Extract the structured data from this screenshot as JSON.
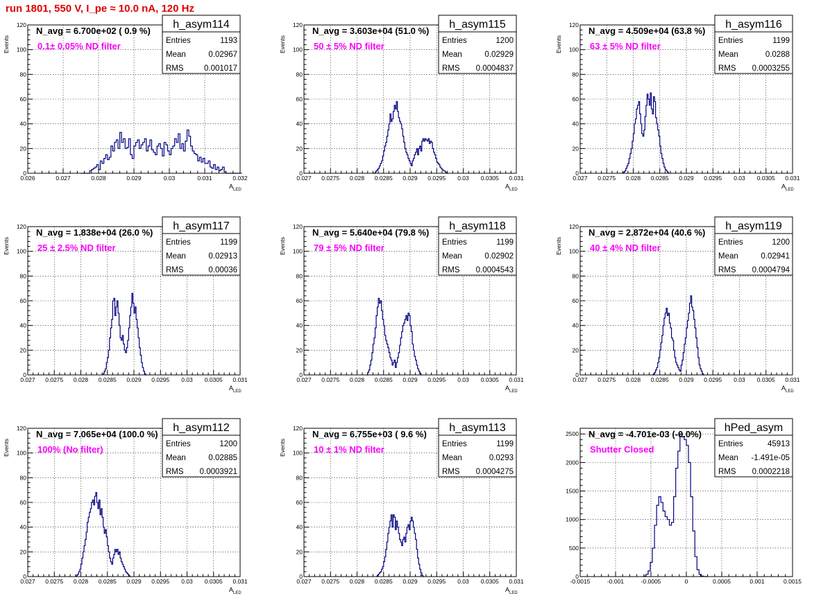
{
  "header": {
    "title": "run 1801,   550 V, I_pe ≈ 10.0 nA, 120 Hz"
  },
  "colors": {
    "title": "#e00000",
    "histogram": "#000080",
    "annotation": "#ff00ff"
  },
  "chart_data": [
    {
      "type": "bar",
      "name": "h_asym114",
      "n_avg": "N_avg = 6.700e+02 ( 0.9 %)",
      "filter": "0.1± 0.05% ND filter",
      "stats": {
        "entries": "1193",
        "mean": "0.02967",
        "rms": "0.001017"
      },
      "xlabel": "A",
      "xlabel_sub": "LED",
      "ylabel": "Events",
      "xlim": [
        0.026,
        0.032
      ],
      "ylim": [
        0,
        120
      ],
      "xticks": [
        0.026,
        0.027,
        0.028,
        0.029,
        0.03,
        0.031,
        0.032
      ],
      "xtick_labels": [
        "0.026",
        "0.027",
        "0.028",
        "0.029",
        "0.03",
        "0.031",
        "0.032"
      ],
      "yticks": [
        0,
        20,
        40,
        60,
        80,
        100,
        120
      ],
      "bin_start": 0.0275,
      "bin_width": 5e-05,
      "counts": [
        0,
        0,
        0,
        0,
        0,
        2,
        3,
        4,
        5,
        7,
        3,
        10,
        8,
        12,
        15,
        11,
        13,
        22,
        18,
        25,
        27,
        20,
        33,
        25,
        28,
        20,
        21,
        28,
        15,
        12,
        22,
        25,
        27,
        20,
        23,
        25,
        28,
        18,
        22,
        27,
        19,
        17,
        15,
        22,
        24,
        20,
        14,
        25,
        23,
        18,
        15,
        20,
        22,
        28,
        25,
        32,
        20,
        24,
        18,
        26,
        35,
        30,
        22,
        18,
        16,
        15,
        10,
        13,
        9,
        12,
        8,
        8,
        10,
        5,
        4,
        7,
        3,
        5,
        2,
        3,
        5,
        1,
        0,
        0,
        0,
        0,
        0,
        0,
        0,
        0,
        0
      ]
    },
    {
      "type": "bar",
      "name": "h_asym115",
      "n_avg": "N_avg = 3.603e+04 (51.0 %)",
      "filter": "50 ± 5% ND filter",
      "stats": {
        "entries": "1200",
        "mean": "0.02929",
        "rms": "0.0004837"
      },
      "xlabel": "A",
      "xlabel_sub": "LED",
      "ylabel": "Events",
      "xlim": [
        0.027,
        0.031
      ],
      "ylim": [
        0,
        120
      ],
      "xticks": [
        0.027,
        0.0275,
        0.028,
        0.0285,
        0.029,
        0.0295,
        0.03,
        0.0305,
        0.031
      ],
      "xtick_labels": [
        "0.027",
        "0.0275",
        "0.028",
        "0.0285",
        "0.029",
        "0.0295",
        "0.03",
        "0.0305",
        "0.031"
      ],
      "yticks": [
        0,
        20,
        40,
        60,
        80,
        100,
        120
      ],
      "bin_start": 0.0283,
      "bin_width": 2e-05,
      "counts": [
        0,
        0,
        1,
        2,
        3,
        4,
        6,
        8,
        10,
        14,
        18,
        22,
        25,
        30,
        35,
        40,
        48,
        42,
        44,
        50,
        55,
        52,
        58,
        50,
        45,
        42,
        40,
        36,
        30,
        25,
        20,
        17,
        15,
        12,
        10,
        8,
        6,
        10,
        12,
        15,
        17,
        20,
        15,
        20,
        22,
        18,
        26,
        28,
        26,
        28,
        27,
        26,
        28,
        24,
        26,
        25,
        20,
        17,
        15,
        12,
        9,
        8,
        7,
        5,
        4,
        3,
        2,
        2,
        1,
        0,
        0
      ]
    },
    {
      "type": "bar",
      "name": "h_asym116",
      "n_avg": "N_avg = 4.509e+04 (63.8 %)",
      "filter": "63 ± 5% ND filter",
      "stats": {
        "entries": "1199",
        "mean": "0.0288",
        "rms": "0.0003255"
      },
      "xlabel": "A",
      "xlabel_sub": "LED",
      "ylabel": "Events",
      "xlim": [
        0.027,
        0.031
      ],
      "ylim": [
        0,
        120
      ],
      "xticks": [
        0.027,
        0.0275,
        0.028,
        0.0285,
        0.029,
        0.0295,
        0.03,
        0.0305,
        0.031
      ],
      "xtick_labels": [
        "0.027",
        "0.0275",
        "0.028",
        "0.0285",
        "0.029",
        "0.0295",
        "0.03",
        "0.0305",
        "0.031"
      ],
      "yticks": [
        0,
        20,
        40,
        60,
        80,
        100,
        120
      ],
      "bin_start": 0.0278,
      "bin_width": 2e-05,
      "counts": [
        0,
        1,
        2,
        4,
        6,
        8,
        12,
        16,
        20,
        26,
        32,
        40,
        44,
        52,
        55,
        58,
        48,
        40,
        32,
        30,
        35,
        46,
        55,
        64,
        60,
        55,
        65,
        52,
        48,
        62,
        58,
        45,
        40,
        35,
        30,
        22,
        16,
        12,
        8,
        5,
        3,
        2,
        1,
        0
      ]
    },
    {
      "type": "bar",
      "name": "h_asym117",
      "n_avg": "N_avg = 1.838e+04 (26.0 %)",
      "filter": "25 ± 2.5% ND filter",
      "stats": {
        "entries": "1199",
        "mean": "0.02913",
        "rms": "0.00036"
      },
      "xlabel": "A",
      "xlabel_sub": "LED",
      "ylabel": "Events",
      "xlim": [
        0.027,
        0.031
      ],
      "ylim": [
        0,
        120
      ],
      "xticks": [
        0.027,
        0.0275,
        0.028,
        0.0285,
        0.029,
        0.0295,
        0.03,
        0.0305,
        0.031
      ],
      "xtick_labels": [
        "0.027",
        "0.0275",
        "0.028",
        "0.0285",
        "0.029",
        "0.0295",
        "0.03",
        "0.0305",
        "0.031"
      ],
      "yticks": [
        0,
        20,
        40,
        60,
        80,
        100,
        120
      ],
      "bin_start": 0.02842,
      "bin_width": 2e-05,
      "counts": [
        1,
        3,
        5,
        10,
        14,
        20,
        30,
        38,
        45,
        60,
        62,
        48,
        55,
        60,
        50,
        40,
        30,
        28,
        32,
        25,
        20,
        18,
        22,
        28,
        38,
        48,
        55,
        66,
        58,
        50,
        55,
        45,
        38,
        30,
        22,
        16,
        10,
        6,
        3,
        1,
        0
      ]
    },
    {
      "type": "bar",
      "name": "h_asym118",
      "n_avg": "N_avg = 5.640e+04 (79.8 %)",
      "filter": "79 ± 5% ND filter",
      "stats": {
        "entries": "1199",
        "mean": "0.02902",
        "rms": "0.0004543"
      },
      "xlabel": "A",
      "xlabel_sub": "LED",
      "ylabel": "Events",
      "xlim": [
        0.027,
        0.031
      ],
      "ylim": [
        0,
        120
      ],
      "xticks": [
        0.027,
        0.0275,
        0.028,
        0.0285,
        0.029,
        0.0295,
        0.03,
        0.0305,
        0.031
      ],
      "xtick_labels": [
        "0.027",
        "0.0275",
        "0.028",
        "0.0285",
        "0.029",
        "0.0295",
        "0.03",
        "0.0305",
        "0.031"
      ],
      "yticks": [
        0,
        20,
        40,
        60,
        80,
        100,
        120
      ],
      "bin_start": 0.02818,
      "bin_width": 2e-05,
      "counts": [
        0,
        2,
        4,
        8,
        12,
        18,
        25,
        30,
        38,
        48,
        55,
        62,
        58,
        60,
        52,
        45,
        40,
        32,
        28,
        25,
        22,
        18,
        14,
        12,
        8,
        10,
        12,
        6,
        10,
        14,
        18,
        24,
        30,
        35,
        40,
        42,
        45,
        48,
        44,
        50,
        48,
        40,
        35,
        25,
        20,
        15,
        12,
        8,
        5,
        3,
        1,
        0
      ]
    },
    {
      "type": "bar",
      "name": "h_asym119",
      "n_avg": "N_avg = 2.872e+04 (40.6 %)",
      "filter": "40 ± 4% ND filter",
      "stats": {
        "entries": "1200",
        "mean": "0.02941",
        "rms": "0.0004794"
      },
      "xlabel": "A",
      "xlabel_sub": "LED",
      "ylabel": "Events",
      "xlim": [
        0.027,
        0.031
      ],
      "ylim": [
        0,
        120
      ],
      "xticks": [
        0.027,
        0.0275,
        0.028,
        0.0285,
        0.029,
        0.0295,
        0.03,
        0.0305,
        0.031
      ],
      "xtick_labels": [
        "0.027",
        "0.0275",
        "0.028",
        "0.0285",
        "0.029",
        "0.0295",
        "0.03",
        "0.0305",
        "0.031"
      ],
      "yticks": [
        0,
        20,
        40,
        60,
        80,
        100,
        120
      ],
      "bin_start": 0.02836,
      "bin_width": 2e-05,
      "counts": [
        0,
        1,
        2,
        4,
        6,
        10,
        14,
        20,
        26,
        32,
        40,
        46,
        50,
        54,
        48,
        50,
        42,
        38,
        30,
        28,
        20,
        14,
        10,
        8,
        6,
        4,
        3,
        8,
        12,
        18,
        25,
        30,
        38,
        44,
        50,
        58,
        64,
        55,
        52,
        45,
        38,
        30,
        22,
        14,
        8,
        5,
        3,
        1,
        0
      ]
    },
    {
      "type": "bar",
      "name": "h_asym112",
      "n_avg": "N_avg = 7.065e+04 (100.0 %)",
      "filter": "100% (No filter)",
      "stats": {
        "entries": "1200",
        "mean": "0.02885",
        "rms": "0.0003921"
      },
      "xlabel": "A",
      "xlabel_sub": "LED",
      "ylabel": "Events",
      "xlim": [
        0.027,
        0.031
      ],
      "ylim": [
        0,
        120
      ],
      "xticks": [
        0.027,
        0.0275,
        0.028,
        0.0285,
        0.029,
        0.0295,
        0.03,
        0.0305,
        0.031
      ],
      "xtick_labels": [
        "0.027",
        "0.0275",
        "0.028",
        "0.0285",
        "0.029",
        "0.0295",
        "0.03",
        "0.0305",
        "0.031"
      ],
      "yticks": [
        0,
        20,
        40,
        60,
        80,
        100,
        120
      ],
      "bin_start": 0.0279,
      "bin_width": 2e-05,
      "counts": [
        0,
        1,
        2,
        4,
        6,
        10,
        15,
        20,
        25,
        30,
        36,
        44,
        48,
        52,
        55,
        60,
        62,
        58,
        65,
        68,
        60,
        55,
        62,
        50,
        55,
        48,
        40,
        35,
        38,
        32,
        25,
        20,
        15,
        12,
        10,
        15,
        18,
        22,
        20,
        22,
        18,
        20,
        15,
        12,
        10,
        8,
        6,
        4,
        3,
        2,
        1,
        0
      ]
    },
    {
      "type": "bar",
      "name": "h_asym113",
      "n_avg": "N_avg = 6.755e+03 ( 9.6 %)",
      "filter": "10 ± 1% ND filter",
      "stats": {
        "entries": "1199",
        "mean": "0.0293",
        "rms": "0.0004275"
      },
      "xlabel": "A",
      "xlabel_sub": "LED",
      "ylabel": "Events",
      "xlim": [
        0.027,
        0.031
      ],
      "ylim": [
        0,
        120
      ],
      "xticks": [
        0.027,
        0.0275,
        0.028,
        0.0285,
        0.029,
        0.0295,
        0.03,
        0.0305,
        0.031
      ],
      "xtick_labels": [
        "0.027",
        "0.0275",
        "0.028",
        "0.0285",
        "0.029",
        "0.0295",
        "0.03",
        "0.0305",
        "0.031"
      ],
      "yticks": [
        0,
        20,
        40,
        60,
        80,
        100,
        120
      ],
      "bin_start": 0.02836,
      "bin_width": 2e-05,
      "counts": [
        0,
        1,
        2,
        3,
        4,
        6,
        8,
        12,
        16,
        22,
        28,
        35,
        40,
        45,
        50,
        40,
        50,
        48,
        38,
        45,
        40,
        35,
        30,
        28,
        25,
        30,
        32,
        28,
        35,
        40,
        42,
        38,
        45,
        48,
        45,
        40,
        35,
        30,
        22,
        15,
        10,
        6,
        3,
        1,
        0
      ]
    },
    {
      "type": "bar",
      "name": "hPed_asym",
      "n_avg": "N_avg = -4.701e-03 (-0.0%)",
      "filter": "Shutter Closed",
      "stats": {
        "entries": "45913",
        "mean": "-1.491e-05",
        "rms": "0.0002218"
      },
      "xlabel": "",
      "xlabel_sub": "",
      "ylabel": "",
      "xlim": [
        -0.0015,
        0.0015
      ],
      "ylim": [
        0,
        2600
      ],
      "xticks": [
        -0.0015,
        -0.001,
        -0.0005,
        0,
        0.0005,
        0.001,
        0.0015
      ],
      "xtick_labels": [
        "-0.0015",
        "-0.001",
        "-0.0005",
        "0",
        "0.0005",
        "0.001",
        "0.0015"
      ],
      "yticks": [
        0,
        500,
        1000,
        1500,
        2000,
        2500
      ],
      "bin_start": -0.0006,
      "bin_width": 3e-05,
      "counts": [
        10,
        40,
        100,
        250,
        500,
        900,
        1250,
        1400,
        1300,
        1150,
        1050,
        1000,
        900,
        950,
        1400,
        1900,
        2200,
        2500,
        2450,
        2400,
        2300,
        2000,
        1400,
        800,
        350,
        120,
        40,
        10,
        2,
        0
      ]
    }
  ]
}
